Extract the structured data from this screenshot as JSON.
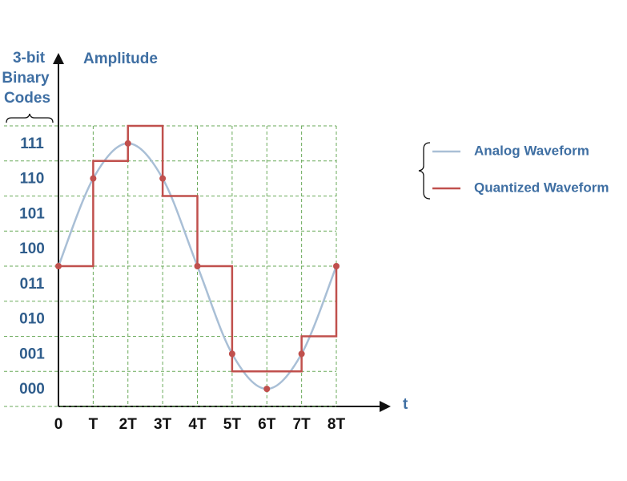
{
  "chart_data": {
    "type": "line",
    "ylabel": "Amplitude",
    "code_label": [
      "3-bit",
      "Binary",
      "Codes"
    ],
    "xlabel": "t",
    "x": [
      0,
      1,
      2,
      3,
      4,
      5,
      6,
      7,
      8
    ],
    "xlim": [
      0,
      8
    ],
    "ylim": [
      0,
      8
    ],
    "xticks": [
      0,
      {
        "value": 1,
        "label": "T"
      },
      {
        "value": 2,
        "label": "2T"
      },
      {
        "value": 3,
        "label": "3T"
      },
      {
        "value": 4,
        "label": "4T"
      },
      {
        "value": 5,
        "label": "5T"
      },
      {
        "value": 6,
        "label": "6T"
      },
      {
        "value": 7,
        "label": "7T"
      },
      {
        "value": 8,
        "label": "8T"
      }
    ],
    "yticks": [
      {
        "value": 0,
        "label": "000"
      },
      {
        "value": 1,
        "label": "001"
      },
      {
        "value": 2,
        "label": "010"
      },
      {
        "value": 3,
        "label": "011"
      },
      {
        "value": 4,
        "label": "100"
      },
      {
        "value": 5,
        "label": "101"
      },
      {
        "value": 6,
        "label": "110"
      },
      {
        "value": 7,
        "label": "111"
      }
    ],
    "grid": true,
    "grid_color": "#6aaa5a",
    "series": [
      {
        "name": "Analog Waveform",
        "color": "#a9bfd6",
        "values": [
          4,
          6.5,
          7.5,
          6.5,
          4,
          1.5,
          0.5,
          1.5,
          4
        ],
        "smooth": true,
        "marker_color": "#c0504d"
      },
      {
        "name": "Quantized Waveform",
        "color": "#c0504d",
        "values": [
          4,
          7,
          8,
          6,
          4,
          1,
          1,
          2,
          4
        ],
        "step": "post"
      }
    ]
  }
}
